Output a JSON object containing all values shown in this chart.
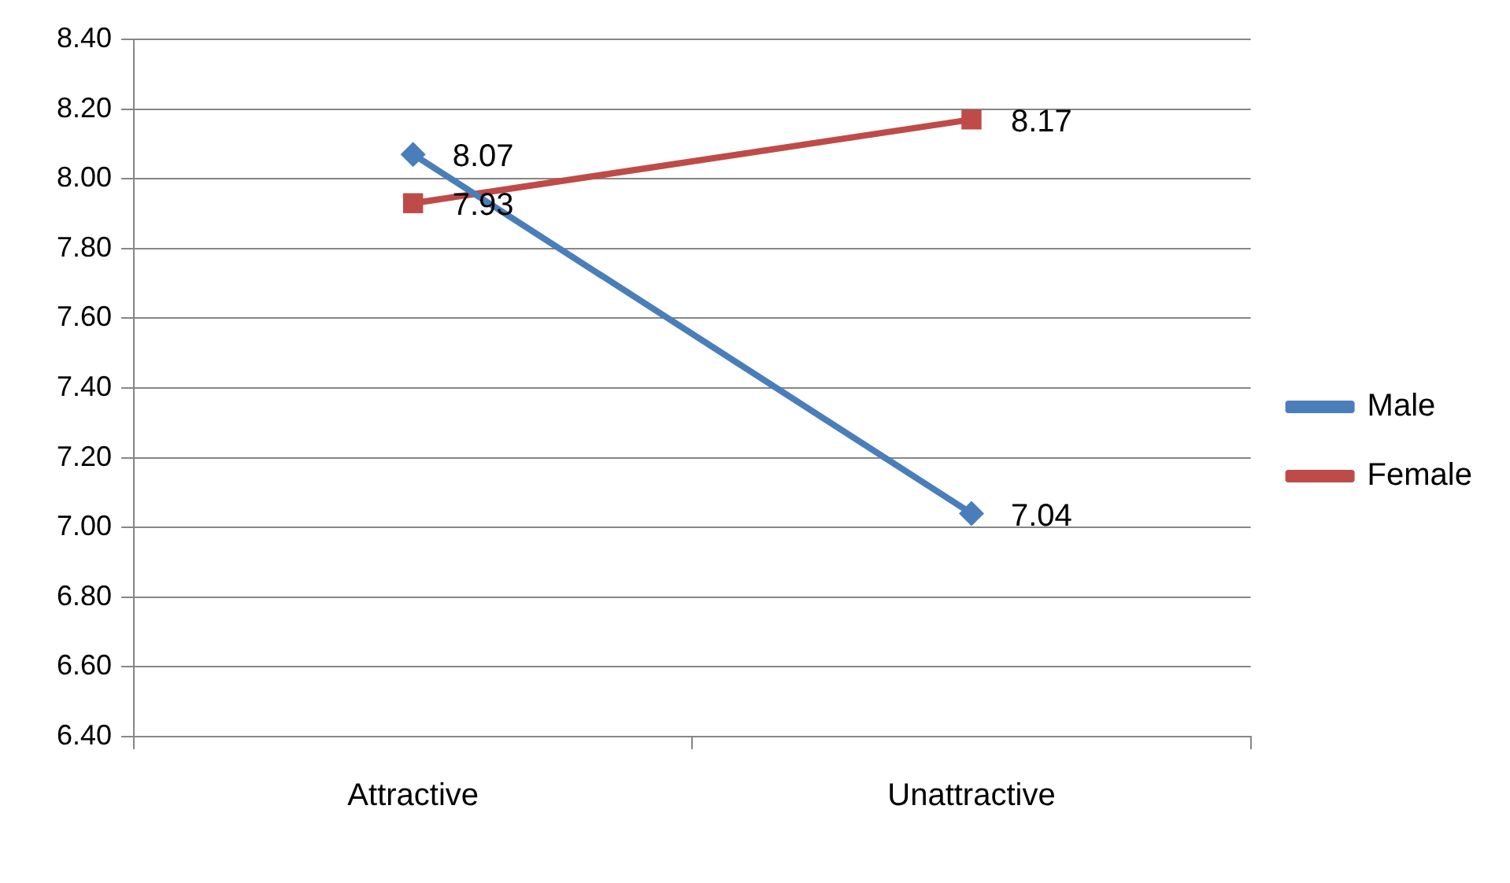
{
  "chart_data": {
    "type": "line",
    "categories": [
      "Attractive",
      "Unattractive"
    ],
    "series": [
      {
        "name": "Male",
        "color": "#4a7ebb",
        "values": [
          8.07,
          7.04
        ],
        "marker": "diamond"
      },
      {
        "name": "Female",
        "color": "#be4b48",
        "values": [
          7.93,
          8.17
        ],
        "marker": "square"
      }
    ],
    "ylim": [
      6.4,
      8.4
    ],
    "yticks": [
      {
        "value": 6.4,
        "label": "6.40"
      },
      {
        "value": 6.6,
        "label": "6.60"
      },
      {
        "value": 6.8,
        "label": "6.80"
      },
      {
        "value": 7.0,
        "label": "7.00"
      },
      {
        "value": 7.2,
        "label": "7.20"
      },
      {
        "value": 7.4,
        "label": "7.40"
      },
      {
        "value": 7.6,
        "label": "7.60"
      },
      {
        "value": 7.8,
        "label": "7.80"
      },
      {
        "value": 8.0,
        "label": "8.00"
      },
      {
        "value": 8.2,
        "label": "8.20"
      },
      {
        "value": 8.4,
        "label": "8.40"
      }
    ],
    "grid": "y",
    "legend": "right",
    "data_labels": true,
    "line_style": "solid"
  }
}
